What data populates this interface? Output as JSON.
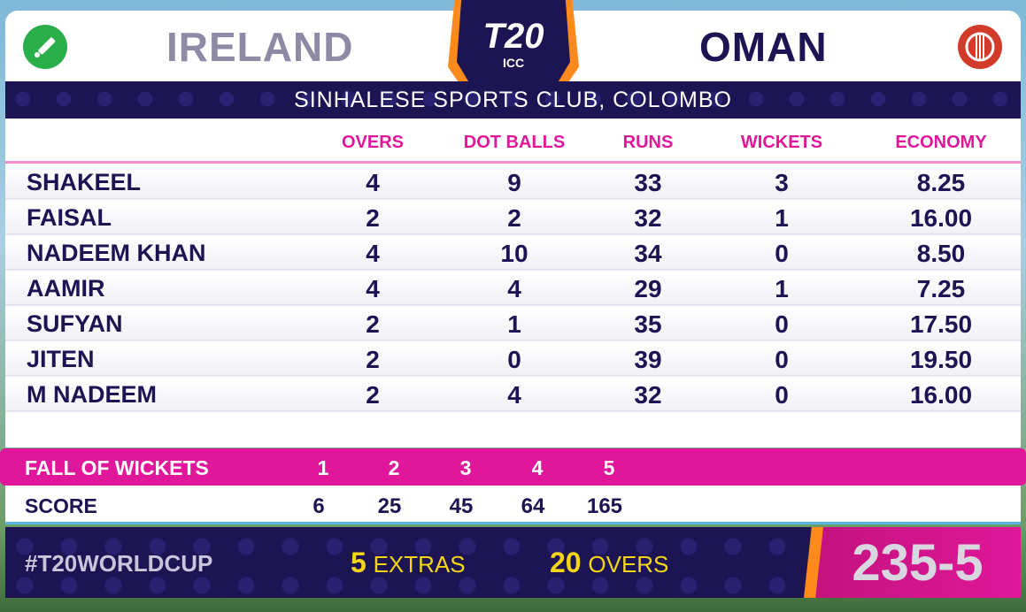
{
  "header": {
    "team_left": "IRELAND",
    "team_right": "OMAN",
    "logo_text": "T20",
    "logo_sub": "ICC",
    "venue": "SINHALESE SPORTS CLUB, COLOMBO"
  },
  "table": {
    "columns": [
      "OVERS",
      "DOT BALLS",
      "RUNS",
      "WICKETS",
      "ECONOMY"
    ],
    "rows": [
      {
        "name": "SHAKEEL",
        "overs": "4",
        "dots": "9",
        "runs": "33",
        "wkts": "3",
        "econ": "8.25"
      },
      {
        "name": "FAISAL",
        "overs": "2",
        "dots": "2",
        "runs": "32",
        "wkts": "1",
        "econ": "16.00"
      },
      {
        "name": "NADEEM KHAN",
        "overs": "4",
        "dots": "10",
        "runs": "34",
        "wkts": "0",
        "econ": "8.50"
      },
      {
        "name": "AAMIR",
        "overs": "4",
        "dots": "4",
        "runs": "29",
        "wkts": "1",
        "econ": "7.25"
      },
      {
        "name": "SUFYAN",
        "overs": "2",
        "dots": "1",
        "runs": "35",
        "wkts": "0",
        "econ": "17.50"
      },
      {
        "name": "JITEN",
        "overs": "2",
        "dots": "0",
        "runs": "39",
        "wkts": "0",
        "econ": "19.50"
      },
      {
        "name": "M NADEEM",
        "overs": "2",
        "dots": "4",
        "runs": "32",
        "wkts": "0",
        "econ": "16.00"
      }
    ]
  },
  "fall_of_wickets": {
    "label": "FALL OF WICKETS",
    "wickets": [
      "1",
      "2",
      "3",
      "4",
      "5"
    ],
    "score_label": "SCORE",
    "scores": [
      "6",
      "25",
      "45",
      "64",
      "165"
    ]
  },
  "footer": {
    "hashtag": "#T20WORLDCUP",
    "extras_num": "5",
    "extras_label": "EXTRAS",
    "overs_num": "20",
    "overs_label": "OVERS",
    "total": "235-5"
  },
  "colors": {
    "navy": "#1c1453",
    "magenta": "#e0179a",
    "orange": "#ff8a1c",
    "gold": "#f5d518",
    "ireland_green": "#2aae4a",
    "oman_red": "#d23a2a"
  },
  "icons": {
    "left": "cricket-bat-icon",
    "right": "cricket-ball-icon"
  }
}
